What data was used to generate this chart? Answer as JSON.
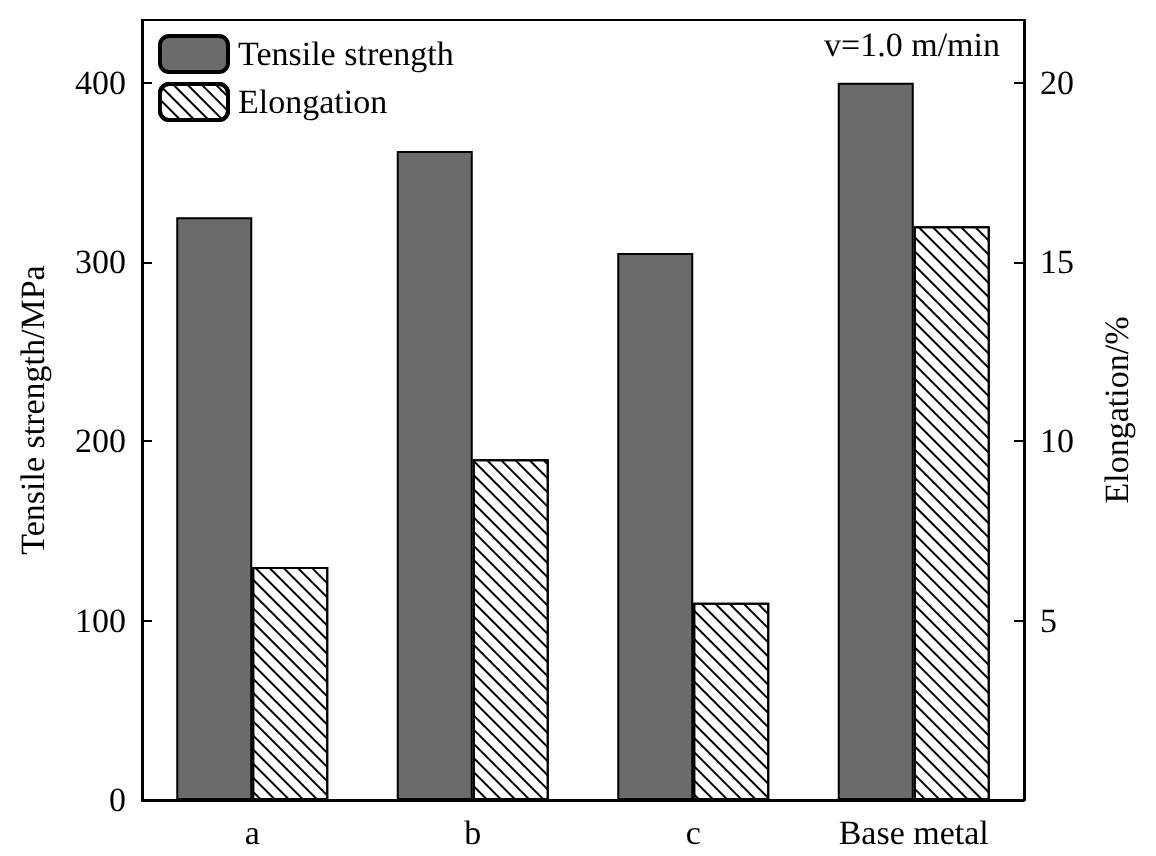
{
  "chart_data": {
    "type": "bar",
    "ylabel": "Tensile strength/MPa",
    "y2label": "Elongation/%",
    "categories": [
      "a",
      "b",
      "c",
      "Base metal"
    ],
    "series": [
      {
        "name": "Tensile strength",
        "color": "#6b6b6b",
        "values": [
          325,
          362,
          305,
          400
        ]
      },
      {
        "name": "Elongation",
        "color": "#ffffff",
        "axis": "y2",
        "values": [
          6.5,
          9.5,
          5.5,
          16
        ]
      }
    ],
    "ylim": [
      0,
      435
    ],
    "yticks": [
      0,
      100,
      200,
      300,
      400
    ],
    "y2lim": [
      0,
      21.75
    ],
    "y2ticks": [
      5,
      10,
      15,
      20
    ],
    "annotations": [
      "v=1.0 m/min"
    ],
    "legend": "top left",
    "grid": false
  }
}
